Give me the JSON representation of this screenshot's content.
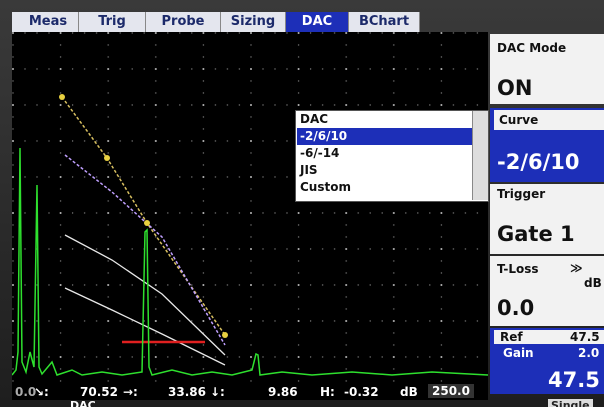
{
  "tabs": [
    "Meas",
    "Trig",
    "Probe",
    "Sizing",
    "DAC",
    "BChart"
  ],
  "dropdown": {
    "title": "DAC",
    "options": [
      "-2/6/10",
      "-6/-14",
      "JIS",
      "Custom"
    ]
  },
  "panel": {
    "dac_mode": {
      "label": "DAC Mode",
      "value": "ON"
    },
    "curve": {
      "label": "Curve",
      "value": "-2/6/10"
    },
    "trigger": {
      "label": "Trigger",
      "value": "Gate 1"
    },
    "t_loss": {
      "label": "T-Loss",
      "arrow": "≫",
      "unit": "dB",
      "value": "0.0"
    },
    "ref": {
      "label": "Ref",
      "value": "47.5"
    },
    "gain": {
      "label": "Gain",
      "value": "2.0",
      "total": "47.5"
    }
  },
  "status": {
    "start": "0.0",
    "readings": [
      {
        "label": "↘:",
        "value": "70.52"
      },
      {
        "label": "→:",
        "value": "33.86"
      },
      {
        "label": "↓:",
        "value": "9.86"
      },
      {
        "label": "H:",
        "value": "-0.32"
      }
    ],
    "unit": "dB",
    "end": "250.0"
  },
  "footer": {
    "mode": "DAC",
    "scan": "Single"
  }
}
